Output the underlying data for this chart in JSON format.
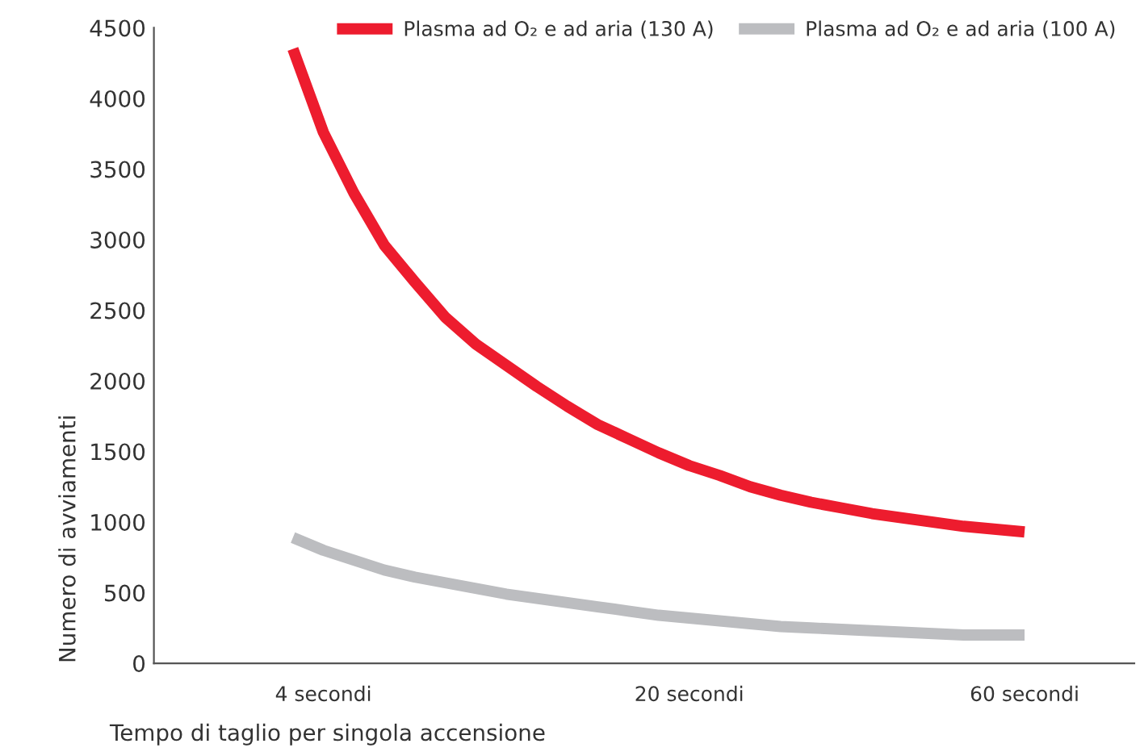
{
  "chart_data": {
    "type": "line",
    "xlabel": "Tempo di taglio per singola accensione",
    "ylabel": "Numero di avviamenti",
    "categories": [
      null,
      "4 secondi",
      null,
      null,
      null,
      null,
      null,
      null,
      null,
      null,
      null,
      null,
      null,
      "20 secondi",
      null,
      null,
      null,
      null,
      null,
      null,
      null,
      null,
      null,
      null,
      "60 secondi"
    ],
    "ylim": [
      0,
      4500
    ],
    "yticks": [
      0,
      500,
      1000,
      1500,
      2000,
      2500,
      3000,
      3500,
      4000,
      4500
    ],
    "grid": false,
    "legend": "top right",
    "marker": "none",
    "line_style": "solid",
    "series": [
      {
        "name": "Plasma ad O₂ e ad aria (130 A)",
        "color": "#ed1c2e",
        "values": [
          4350,
          3760,
          3330,
          2960,
          2700,
          2450,
          2260,
          2110,
          1960,
          1820,
          1690,
          1590,
          1490,
          1400,
          1330,
          1250,
          1190,
          1140,
          1100,
          1060,
          1030,
          1000,
          970,
          950,
          930
        ]
      },
      {
        "name": "Plasma ad O₂ e ad aria (100 A)",
        "color": "#bcbdc0",
        "values": [
          890,
          800,
          730,
          660,
          610,
          570,
          530,
          490,
          460,
          430,
          400,
          370,
          340,
          320,
          300,
          280,
          260,
          250,
          240,
          230,
          220,
          210,
          200,
          200,
          200
        ]
      }
    ]
  }
}
